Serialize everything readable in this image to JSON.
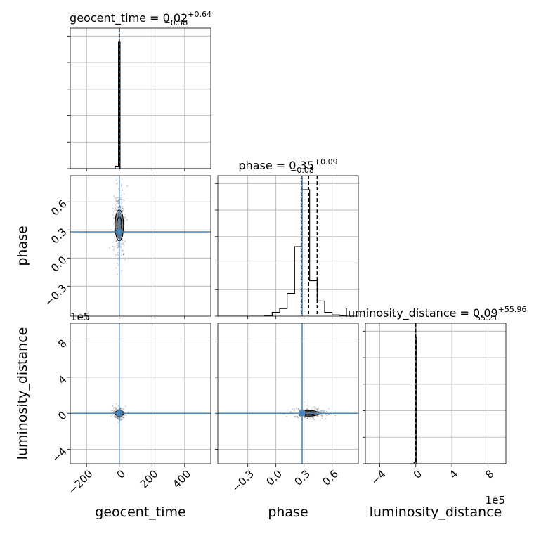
{
  "chart_data": {
    "type": "corner",
    "parameters": [
      "geocent_time",
      "phase",
      "luminosity_distance"
    ],
    "axis_labels": {
      "geocent_time": "geocent_time",
      "phase": "phase",
      "luminosity_distance": "luminosity_distance"
    },
    "titles": {
      "geocent_time": {
        "prefix": "geocent_time = ",
        "median": "0.02",
        "plus": "+0.64",
        "minus": "−0.58"
      },
      "phase": {
        "prefix": "phase = ",
        "median": "0.35",
        "plus": "+0.09",
        "minus": "−0.08"
      },
      "luminosity_distance": {
        "prefix": "luminosity_distance = ",
        "median": "0.09",
        "plus": "+55.96",
        "minus": "−55.21"
      }
    },
    "offset_label": "1e5",
    "ranges": {
      "geocent_time": [
        -300,
        560
      ],
      "phase": [
        -0.62,
        0.88
      ],
      "luminosity_distance": [
        -560000,
        1000000
      ]
    },
    "ticks": {
      "geocent_time": {
        "values": [
          -200,
          0,
          200,
          400
        ],
        "labels": [
          "−200",
          "0",
          "200",
          "400"
        ]
      },
      "phase": {
        "values": [
          -0.3,
          0.0,
          0.3,
          0.6
        ],
        "labels": [
          "−0.3",
          "0.0",
          "0.3",
          "0.6"
        ]
      },
      "luminosity_distance": {
        "values": [
          -400000,
          0,
          400000,
          800000
        ],
        "labels": [
          "−4",
          "0",
          "4",
          "8"
        ]
      }
    },
    "truths": {
      "geocent_time": 0.0,
      "phase": 0.28,
      "luminosity_distance": 0
    },
    "quantiles": {
      "geocent_time": [
        -0.56,
        0.02,
        0.66
      ],
      "phase": [
        0.27,
        0.35,
        0.44
      ],
      "luminosity_distance": [
        -55.12,
        0.09,
        56.05
      ]
    },
    "histograms": {
      "geocent_time": {
        "bin_edges": [
          -25,
          -5,
          5,
          20,
          40
        ],
        "counts": [
          0.02,
          1.0,
          0.0,
          0.0
        ]
      },
      "phase": {
        "bin_edges": [
          -0.12,
          -0.04,
          0.04,
          0.12,
          0.2,
          0.28,
          0.36,
          0.44,
          0.52,
          0.6,
          0.68,
          0.76
        ],
        "counts": [
          0.005,
          0.03,
          0.06,
          0.18,
          0.55,
          1.0,
          0.28,
          0.12,
          0.03,
          0.01,
          0.005
        ]
      },
      "luminosity_distance": {
        "bin_edges": [
          -20000,
          -5000,
          5000,
          15000,
          30000
        ],
        "counts": [
          0.01,
          1.0,
          0.0,
          0.0
        ]
      }
    },
    "grid": true
  }
}
